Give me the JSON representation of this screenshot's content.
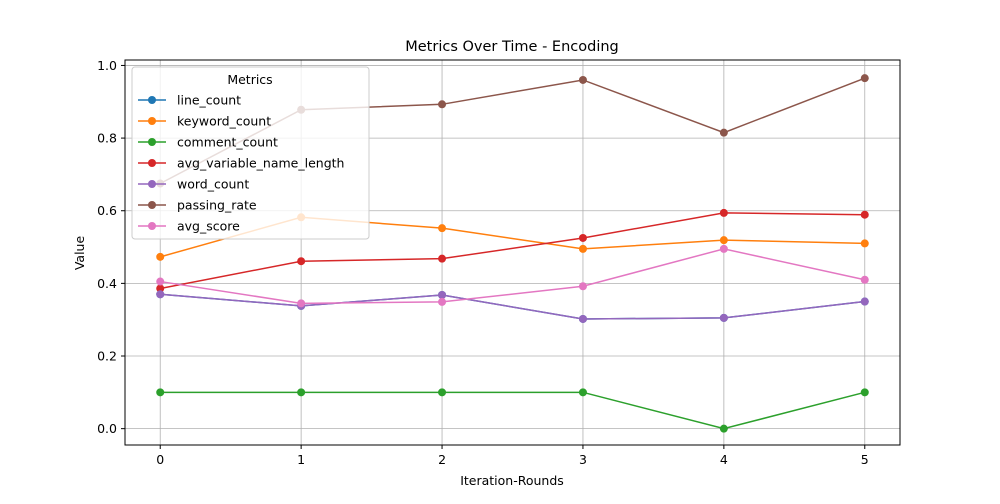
{
  "chart_data": {
    "type": "line",
    "title": "Metrics Over Time - Encoding",
    "xlabel": "Iteration-Rounds",
    "ylabel": "Value",
    "x": [
      0,
      1,
      2,
      3,
      4,
      5
    ],
    "xticks": [
      "0",
      "1",
      "2",
      "3",
      "4",
      "5"
    ],
    "yticks": [
      "0.0",
      "0.2",
      "0.4",
      "0.6",
      "0.8",
      "1.0"
    ],
    "xlim": [
      -0.25,
      5.25
    ],
    "ylim": [
      -0.045,
      1.015
    ],
    "grid": true,
    "legend": {
      "title": "Metrics",
      "placement": "top-left"
    },
    "series": [
      {
        "name": "line_count",
        "color": "#1f77b4",
        "values": [
          0.37,
          0.338,
          0.368,
          0.302,
          0.305,
          0.35
        ]
      },
      {
        "name": "keyword_count",
        "color": "#ff7f0e",
        "values": [
          0.473,
          0.582,
          0.552,
          0.495,
          0.519,
          0.51
        ]
      },
      {
        "name": "comment_count",
        "color": "#2ca02c",
        "values": [
          0.1,
          0.1,
          0.1,
          0.1,
          0.0,
          0.1
        ]
      },
      {
        "name": "avg_variable_name_length",
        "color": "#d62728",
        "values": [
          0.386,
          0.461,
          0.468,
          0.525,
          0.594,
          0.589
        ]
      },
      {
        "name": "word_count",
        "color": "#9467bd",
        "values": [
          0.37,
          0.338,
          0.368,
          0.302,
          0.305,
          0.35
        ]
      },
      {
        "name": "passing_rate",
        "color": "#8c564b",
        "values": [
          0.675,
          0.878,
          0.893,
          0.96,
          0.815,
          0.965
        ]
      },
      {
        "name": "avg_score",
        "color": "#e377c2",
        "values": [
          0.405,
          0.345,
          0.349,
          0.392,
          0.495,
          0.41
        ]
      }
    ]
  }
}
